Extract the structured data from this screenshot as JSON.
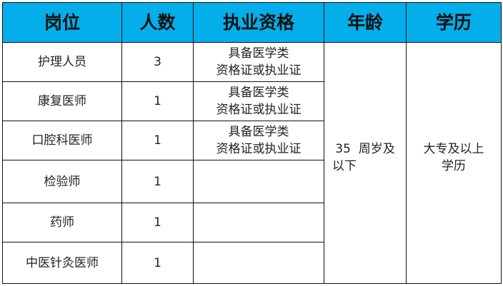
{
  "colors": {
    "header_bg": "#04aeea",
    "border": "#111111"
  },
  "headers": [
    "岗位",
    "人数",
    "执业资格",
    "年龄",
    "学历"
  ],
  "rows": [
    {
      "position": "护理人员",
      "count": "3",
      "qualification": [
        "具备医学类",
        "资格证或执业证"
      ]
    },
    {
      "position": "康复医师",
      "count": "1",
      "qualification": [
        "具备医学类",
        "资格证或执业证"
      ]
    },
    {
      "position": "口腔科医师",
      "count": "1",
      "qualification": [
        "具备医学类",
        "资格证或执业证"
      ]
    },
    {
      "position": "检验师",
      "count": "1",
      "qualification": []
    },
    {
      "position": "药师",
      "count": "1",
      "qualification": []
    },
    {
      "position": "中医针灸医师",
      "count": "1",
      "qualification": []
    }
  ],
  "age": [
    "35  周岁及",
    "以下"
  ],
  "education": [
    "大专及以上",
    "学历"
  ]
}
